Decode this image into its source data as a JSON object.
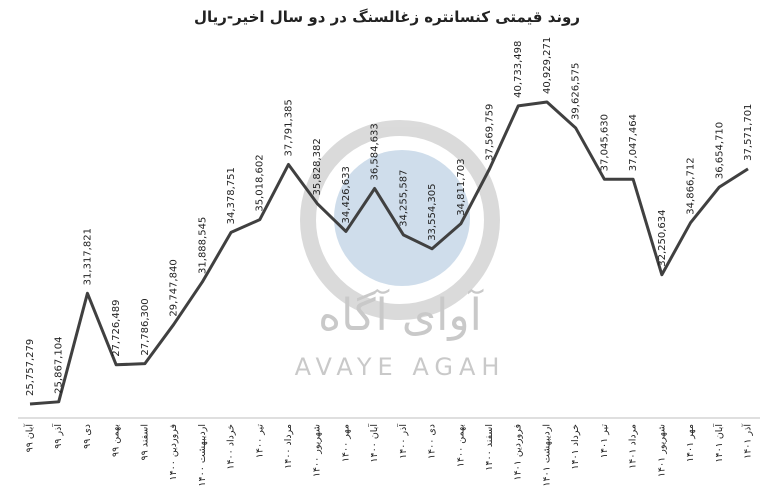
{
  "chart_data": {
    "type": "line",
    "title": "روند قیمتی کنسانتره زغالسنگ در دو سال اخیر-ریال",
    "watermark": {
      "text_fa": "آوای آگاه",
      "text_en": "AVAYE AGAH"
    },
    "categories": [
      "آبان ۹۹",
      "آذر ۹۹",
      "دی ۹۹",
      "بهمن ۹۹",
      "اسفند ۹۹",
      "فروردین ۱۴۰۰",
      "اردیبهشت ۱۴۰۰",
      "خرداد ۱۴۰۰",
      "تیر ۱۴۰۰",
      "مرداد ۱۴۰۰",
      "شهریور ۱۴۰۰",
      "مهر ۱۴۰۰",
      "آبان ۱۴۰۰",
      "آذر ۱۴۰۰",
      "دی ۱۴۰۰",
      "بهمن ۱۴۰۰",
      "اسفند ۱۴۰۰",
      "فروردین ۱۴۰۱",
      "اردیبهشت ۱۴۰۱",
      "خرداد ۱۴۰۱",
      "تیر ۱۴۰۱",
      "مرداد ۱۴۰۱",
      "شهریور ۱۴۰۱",
      "مهر ۱۴۰۱",
      "آبان ۱۴۰۱",
      "آذر ۱۴۰۱"
    ],
    "values": [
      25757279,
      25867104,
      31317821,
      27726489,
      27786300,
      29747840,
      31888545,
      34378751,
      35018602,
      37791385,
      35828382,
      34426633,
      36584633,
      34255587,
      33554305,
      34811703,
      37569759,
      40733498,
      40929271,
      39626575,
      37045630,
      37047464,
      32250634,
      34866712,
      36654710,
      37571701
    ],
    "value_labels": [
      "25,757,279",
      "25,867,104",
      "31,317,821",
      "27,726,489",
      "27,786,300",
      "29,747,840",
      "31,888,545",
      "34,378,751",
      "35,018,602",
      "37,791,385",
      "35,828,382",
      "34,426,633",
      "36,584,633",
      "34,255,587",
      "33,554,305",
      "34,811,703",
      "37,569,759",
      "40,733,498",
      "40,929,271",
      "39,626,575",
      "37,045,630",
      "37,047,464",
      "32,250,634",
      "34,866,712",
      "36,654,710",
      "37,571,701"
    ],
    "color": "#404040"
  }
}
